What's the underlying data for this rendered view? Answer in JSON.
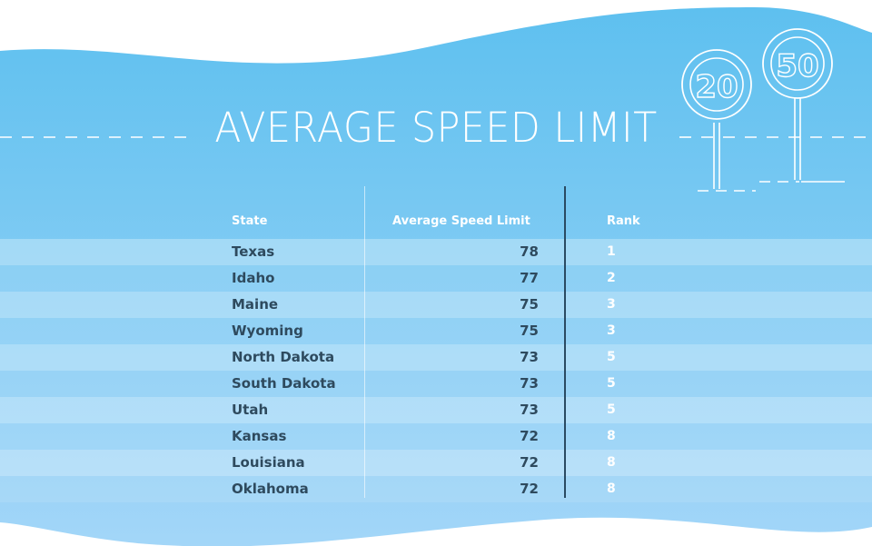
{
  "title": "AVERAGE SPEED LIMIT",
  "signs": [
    "20",
    "50"
  ],
  "colors": {
    "background_top": "#5ec0ef",
    "background_bottom": "#9dd4f7",
    "state_text": "#2e4a5e",
    "rank_text": "#ffffff"
  },
  "icons": [
    "speed-limit-sign-20-icon",
    "speed-limit-sign-50-icon"
  ],
  "chart_data": {
    "type": "table",
    "title": "AVERAGE SPEED LIMIT",
    "columns": [
      "State",
      "Average Speed Limit",
      "Rank"
    ],
    "rows": [
      {
        "state": "Texas",
        "speed": "78",
        "rank": "1"
      },
      {
        "state": "Idaho",
        "speed": "77",
        "rank": "2"
      },
      {
        "state": "Maine",
        "speed": "75",
        "rank": "3"
      },
      {
        "state": "Wyoming",
        "speed": "75",
        "rank": "3"
      },
      {
        "state": "North Dakota",
        "speed": "73",
        "rank": "5"
      },
      {
        "state": "South Dakota",
        "speed": "73",
        "rank": "5"
      },
      {
        "state": "Utah",
        "speed": "73",
        "rank": "5"
      },
      {
        "state": "Kansas",
        "speed": "72",
        "rank": "8"
      },
      {
        "state": "Louisiana",
        "speed": "72",
        "rank": "8"
      },
      {
        "state": "Oklahoma",
        "speed": "72",
        "rank": "8"
      }
    ]
  }
}
